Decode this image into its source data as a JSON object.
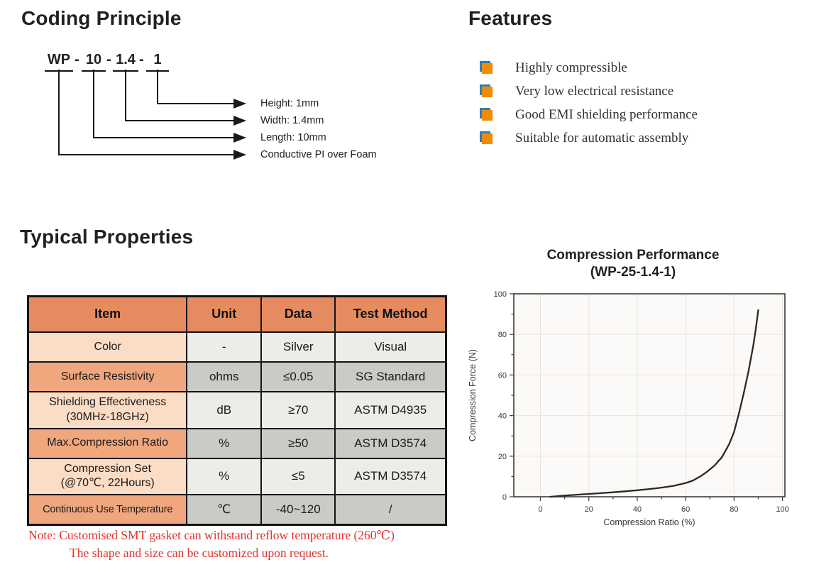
{
  "coding": {
    "title": "Coding Principle",
    "code_segments": [
      "WP",
      "10",
      "1.4",
      "1"
    ],
    "separator": "-",
    "labels": [
      "Height: 1mm",
      "Width: 1.4mm",
      "Length: 10mm",
      "Conductive PI over Foam"
    ]
  },
  "features": {
    "title": "Features",
    "items": [
      "Highly compressible",
      "Very low electrical resistance",
      "Good EMI shielding performance",
      "Suitable for automatic assembly"
    ]
  },
  "properties": {
    "title": "Typical Properties",
    "table": {
      "headers": [
        "Item",
        "Unit",
        "Data",
        "Test Method"
      ],
      "rows": [
        {
          "item": "Color",
          "unit": "-",
          "data": "Silver",
          "method": "Visual"
        },
        {
          "item": "Surface Resistivity",
          "unit": "ohms",
          "data": "≤0.05",
          "method": "SG Standard"
        },
        {
          "item": "Shielding Effectiveness\n(30MHz-18GHz)",
          "unit": "dB",
          "data": "≥70",
          "method": "ASTM D4935"
        },
        {
          "item": "Max.Compression Ratio",
          "unit": "%",
          "data": "≥50",
          "method": "ASTM D3574"
        },
        {
          "item": "Compression Set\n(@70℃, 22Hours)",
          "unit": "%",
          "data": "≤5",
          "method": "ASTM D3574"
        },
        {
          "item": "Continuous Use Temperature",
          "unit": "℃",
          "data": "-40~120",
          "method": "/"
        }
      ]
    },
    "note_line1": "Note: Customised SMT gasket can withstand reflow temperature (260℃)",
    "note_line2": "The shape and size can be customized upon request."
  },
  "colors": {
    "header_orange": "#E68B60",
    "row_peach_light": "#FBDCC5",
    "row_peach_dark": "#F0A77E",
    "row_gray_light": "#EDECE6",
    "row_gray_dark": "#CBCBC5",
    "bullet_orange": "#F18B04",
    "bullet_blue": "#2F7FB8",
    "note_red": "#E2312D"
  },
  "chart_data": {
    "type": "line",
    "title_line1": "Compression Performance",
    "title_line2": "(WP-25-1.4-1)",
    "xlabel": "Compression Ratio (%)",
    "ylabel": "Compression Force (N)",
    "xlim": [
      -11,
      101
    ],
    "ylim": [
      0,
      100
    ],
    "xticks": [
      0,
      20,
      40,
      60,
      80,
      100
    ],
    "xticks_minor": [
      10,
      30,
      50,
      70,
      90
    ],
    "yticks": [
      0,
      20,
      40,
      60,
      80,
      100
    ],
    "yticks_minor": [
      10,
      30,
      50,
      70,
      90
    ],
    "grid": true,
    "legend": null,
    "series": [
      {
        "name": "WP-25-1.4-1 compression curve",
        "points": [
          [
            4,
            0
          ],
          [
            10,
            0.6
          ],
          [
            15,
            1.0
          ],
          [
            20,
            1.4
          ],
          [
            25,
            1.8
          ],
          [
            30,
            2.2
          ],
          [
            35,
            2.7
          ],
          [
            40,
            3.2
          ],
          [
            45,
            3.8
          ],
          [
            50,
            4.5
          ],
          [
            55,
            5.4
          ],
          [
            60,
            6.8
          ],
          [
            63,
            8.0
          ],
          [
            66,
            10.0
          ],
          [
            69,
            12.5
          ],
          [
            72,
            15.5
          ],
          [
            75,
            19.5
          ],
          [
            78,
            26.0
          ],
          [
            80,
            32.0
          ],
          [
            82,
            41.0
          ],
          [
            84,
            51.0
          ],
          [
            86,
            62.0
          ],
          [
            88,
            75.0
          ],
          [
            89,
            83.0
          ],
          [
            90,
            92.0
          ]
        ]
      }
    ]
  }
}
